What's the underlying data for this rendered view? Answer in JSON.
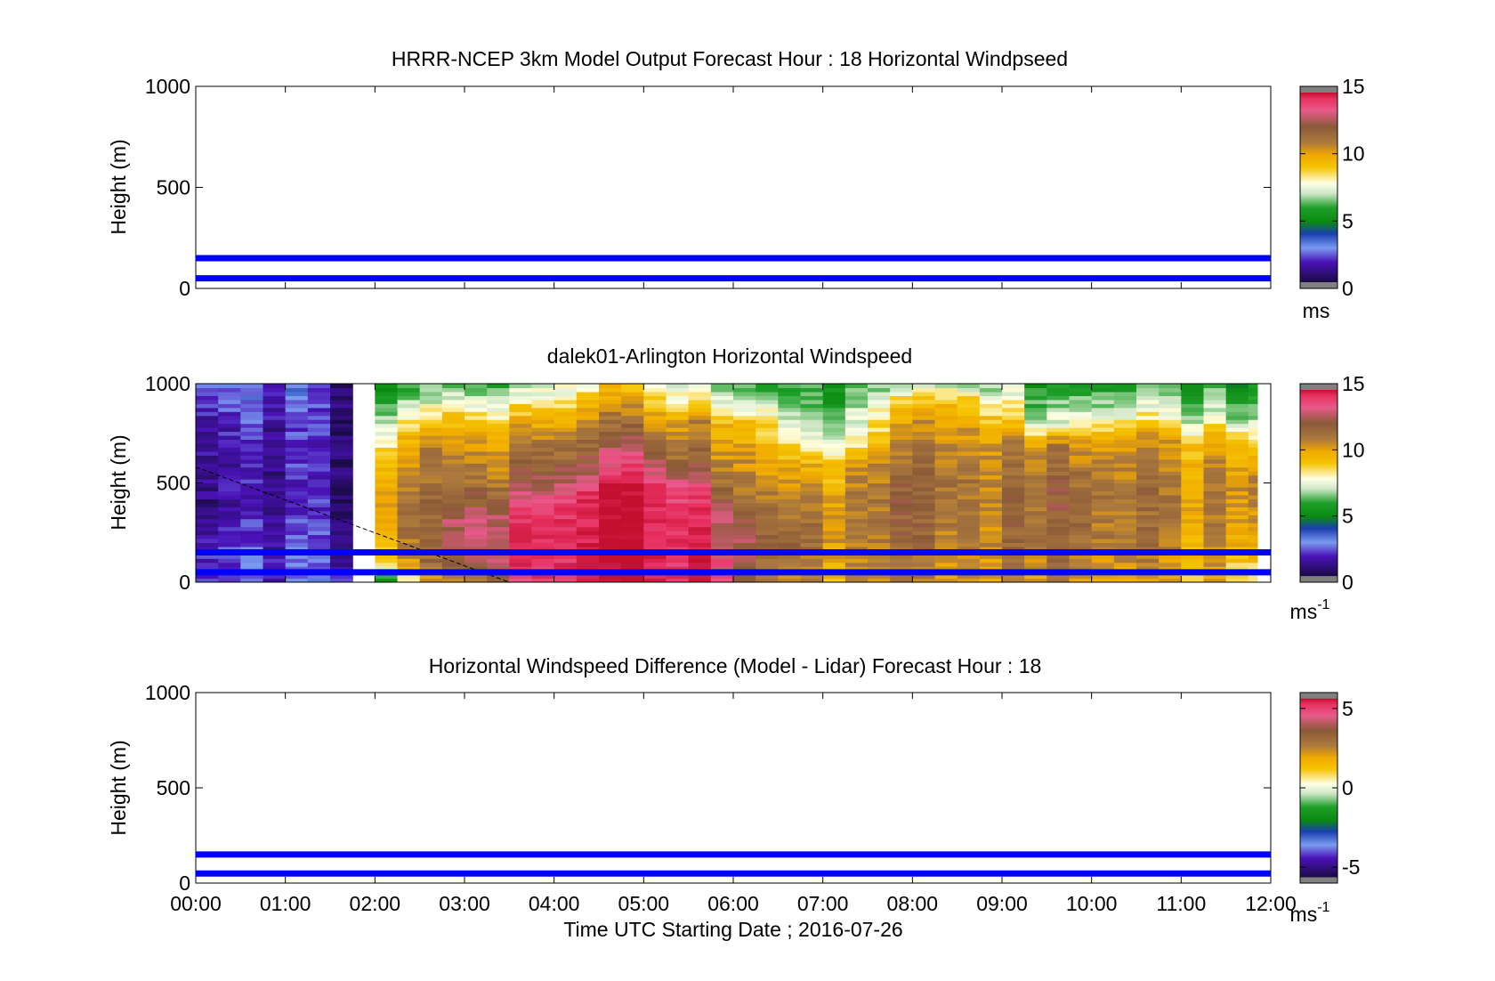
{
  "chart_data": [
    {
      "type": "heatmap",
      "title": "HRRR-NCEP 3km Model Output   Forecast Hour : 18 Horizontal Windpseed",
      "ylabel": "Height (m)",
      "ylim": [
        0,
        1000
      ],
      "yticks": [
        "0",
        "500",
        "1000"
      ],
      "xlim_hours": [
        0,
        12
      ],
      "colorbar": {
        "min": 0,
        "max": 15,
        "ticks": [
          "0",
          "5",
          "10",
          "15"
        ],
        "unit": "ms"
      },
      "reference_lines_m": [
        150,
        50
      ],
      "cells": []
    },
    {
      "type": "heatmap",
      "title": "dalek01-Arlington  Horizontal Windspeed",
      "ylabel": "Height (m)",
      "ylim": [
        0,
        1000
      ],
      "yticks": [
        "0",
        "500",
        "1000"
      ],
      "xlim_hours": [
        0,
        12
      ],
      "colorbar": {
        "min": 0,
        "max": 15,
        "ticks": [
          "0",
          "5",
          "10",
          "15"
        ],
        "unit": "ms",
        "unit_exp": "-1"
      },
      "reference_lines_m": [
        150,
        50
      ],
      "dashed_line": {
        "start": [
          0,
          580
        ],
        "end": [
          3.5,
          0
        ]
      },
      "data_time_range_hours": [
        0,
        11.85
      ],
      "gap_hours": [
        1.85,
        2.1
      ],
      "column_width_hours": 0.25,
      "level_step_m": 20,
      "speed_profiles_ms": [
        {
          "t": 0.0,
          "levels": [
            [
              0,
              2.0
            ],
            [
              150,
              1.6
            ],
            [
              400,
              0.8
            ],
            [
              800,
              1.2
            ],
            [
              1000,
              2.2
            ]
          ]
        },
        {
          "t": 1.0,
          "levels": [
            [
              0,
              2.0
            ],
            [
              150,
              1.5
            ],
            [
              400,
              1.0
            ],
            [
              800,
              1.4
            ],
            [
              1000,
              2.2
            ]
          ]
        },
        {
          "t": 1.8,
          "levels": [
            [
              0,
              1.6
            ],
            [
              200,
              1.2
            ],
            [
              600,
              0.6
            ],
            [
              1000,
              0.6
            ]
          ]
        },
        {
          "t": 2.1,
          "levels": [
            [
              0,
              5.0
            ],
            [
              100,
              8.5
            ],
            [
              300,
              10.0
            ],
            [
              600,
              9.0
            ],
            [
              800,
              7.0
            ],
            [
              1000,
              5.0
            ]
          ]
        },
        {
          "t": 2.6,
          "levels": [
            [
              0,
              9.0
            ],
            [
              100,
              10.0
            ],
            [
              250,
              10.5
            ],
            [
              500,
              10.0
            ],
            [
              700,
              9.5
            ],
            [
              850,
              7.0
            ],
            [
              1000,
              5.0
            ]
          ]
        },
        {
          "t": 3.0,
          "levels": [
            [
              0,
              10.0
            ],
            [
              150,
              11.5
            ],
            [
              300,
              12.0
            ],
            [
              500,
              10.5
            ],
            [
              700,
              9.5
            ],
            [
              850,
              8.0
            ],
            [
              1000,
              5.5
            ]
          ]
        },
        {
          "t": 3.5,
          "levels": [
            [
              0,
              12.5
            ],
            [
              150,
              13.5
            ],
            [
              300,
              13.0
            ],
            [
              500,
              11.0
            ],
            [
              700,
              10.0
            ],
            [
              850,
              8.0
            ],
            [
              1000,
              6.0
            ]
          ]
        },
        {
          "t": 4.0,
          "levels": [
            [
              0,
              13.5
            ],
            [
              200,
              14.0
            ],
            [
              400,
              13.5
            ],
            [
              550,
              11.5
            ],
            [
              750,
              10.0
            ],
            [
              900,
              8.0
            ],
            [
              1000,
              7.0
            ]
          ]
        },
        {
          "t": 4.6,
          "levels": [
            [
              0,
              14.0
            ],
            [
              200,
              14.0
            ],
            [
              450,
              14.0
            ],
            [
              600,
              12.0
            ],
            [
              800,
              10.0
            ],
            [
              900,
              9.0
            ],
            [
              1000,
              8.0
            ]
          ]
        },
        {
          "t": 5.0,
          "levels": [
            [
              0,
              14.5
            ],
            [
              250,
              14.5
            ],
            [
              500,
              14.0
            ],
            [
              650,
              12.0
            ],
            [
              800,
              10.5
            ],
            [
              1000,
              8.0
            ]
          ]
        },
        {
          "t": 5.5,
          "levels": [
            [
              0,
              14.0
            ],
            [
              250,
              14.0
            ],
            [
              450,
              13.5
            ],
            [
              600,
              11.0
            ],
            [
              800,
              10.0
            ],
            [
              1000,
              6.5
            ]
          ]
        },
        {
          "t": 5.9,
          "levels": [
            [
              0,
              13.5
            ],
            [
              200,
              13.0
            ],
            [
              400,
              12.0
            ],
            [
              600,
              10.5
            ],
            [
              800,
              9.5
            ],
            [
              1000,
              6.0
            ]
          ]
        },
        {
          "t": 6.3,
          "levels": [
            [
              0,
              10.5
            ],
            [
              200,
              11.5
            ],
            [
              400,
              10.5
            ],
            [
              650,
              9.5
            ],
            [
              800,
              8.5
            ],
            [
              1000,
              5.5
            ]
          ]
        },
        {
          "t": 6.8,
          "levels": [
            [
              0,
              9.5
            ],
            [
              200,
              10.5
            ],
            [
              400,
              10.0
            ],
            [
              600,
              8.5
            ],
            [
              750,
              6.5
            ],
            [
              1000,
              5.0
            ]
          ]
        },
        {
          "t": 7.4,
          "levels": [
            [
              0,
              9.5
            ],
            [
              200,
              10.0
            ],
            [
              400,
              10.0
            ],
            [
              600,
              9.5
            ],
            [
              700,
              7.5
            ],
            [
              1000,
              5.5
            ]
          ]
        },
        {
          "t": 8.0,
          "levels": [
            [
              0,
              9.5
            ],
            [
              250,
              10.5
            ],
            [
              500,
              10.5
            ],
            [
              700,
              9.5
            ],
            [
              850,
              9.0
            ],
            [
              1000,
              6.0
            ]
          ]
        },
        {
          "t": 8.4,
          "levels": [
            [
              0,
              10.0
            ],
            [
              200,
              10.5
            ],
            [
              500,
              11.0
            ],
            [
              700,
              10.5
            ],
            [
              900,
              9.5
            ],
            [
              1000,
              7.0
            ]
          ]
        },
        {
          "t": 9.0,
          "levels": [
            [
              0,
              10.0
            ],
            [
              200,
              10.5
            ],
            [
              500,
              10.5
            ],
            [
              700,
              10.0
            ],
            [
              850,
              8.5
            ],
            [
              1000,
              6.5
            ]
          ]
        },
        {
          "t": 9.5,
          "levels": [
            [
              0,
              9.5
            ],
            [
              200,
              10.5
            ],
            [
              500,
              10.5
            ],
            [
              700,
              9.5
            ],
            [
              800,
              6.0
            ],
            [
              1000,
              4.5
            ]
          ]
        },
        {
          "t": 10.0,
          "levels": [
            [
              0,
              9.0
            ],
            [
              200,
              10.5
            ],
            [
              500,
              10.5
            ],
            [
              700,
              9.5
            ],
            [
              800,
              7.5
            ],
            [
              1000,
              5.0
            ]
          ]
        },
        {
          "t": 10.6,
          "levels": [
            [
              0,
              9.0
            ],
            [
              200,
              10.0
            ],
            [
              500,
              10.0
            ],
            [
              700,
              9.5
            ],
            [
              850,
              7.0
            ],
            [
              1000,
              5.0
            ]
          ]
        },
        {
          "t": 11.2,
          "levels": [
            [
              0,
              9.0
            ],
            [
              200,
              9.5
            ],
            [
              500,
              10.0
            ],
            [
              700,
              9.0
            ],
            [
              850,
              6.5
            ],
            [
              1000,
              5.0
            ]
          ]
        },
        {
          "t": 11.85,
          "levels": [
            [
              0,
              7.0
            ],
            [
              200,
              9.0
            ],
            [
              500,
              9.5
            ],
            [
              700,
              8.0
            ],
            [
              850,
              5.5
            ],
            [
              1000,
              4.5
            ]
          ]
        }
      ]
    },
    {
      "type": "heatmap",
      "title": "Horizontal Windspeed Difference (Model - Lidar) Forecast Hour : 18",
      "xlabel": "Time UTC  Starting Date ; 2016-07-26",
      "ylabel": "Height (m)",
      "ylim": [
        0,
        1000
      ],
      "yticks": [
        "0",
        "500",
        "1000"
      ],
      "xlim_hours": [
        0,
        12
      ],
      "xticks": [
        "00:00",
        "01:00",
        "02:00",
        "03:00",
        "04:00",
        "05:00",
        "06:00",
        "07:00",
        "08:00",
        "09:00",
        "10:00",
        "11:00",
        "12:00"
      ],
      "colorbar": {
        "min": -6,
        "max": 6,
        "ticks": [
          "-5",
          "0",
          "5"
        ],
        "unit": "ms",
        "unit_exp": "-1"
      },
      "reference_lines_m": [
        150,
        50
      ],
      "cells": []
    }
  ],
  "colormap": [
    "#808080",
    "#1a0a45",
    "#4a12b8",
    "#7a9af0",
    "#1f8f2a",
    "#0a8a10",
    "#cfe7c7",
    "#ffffe6",
    "#f5c400",
    "#f0a800",
    "#ad7a3d",
    "#8a5a38",
    "#e85a8a",
    "#e83060",
    "#c40f30",
    "#808080"
  ],
  "colors": {
    "reference_line": "#0000ff",
    "dashed_line": "#000000"
  }
}
